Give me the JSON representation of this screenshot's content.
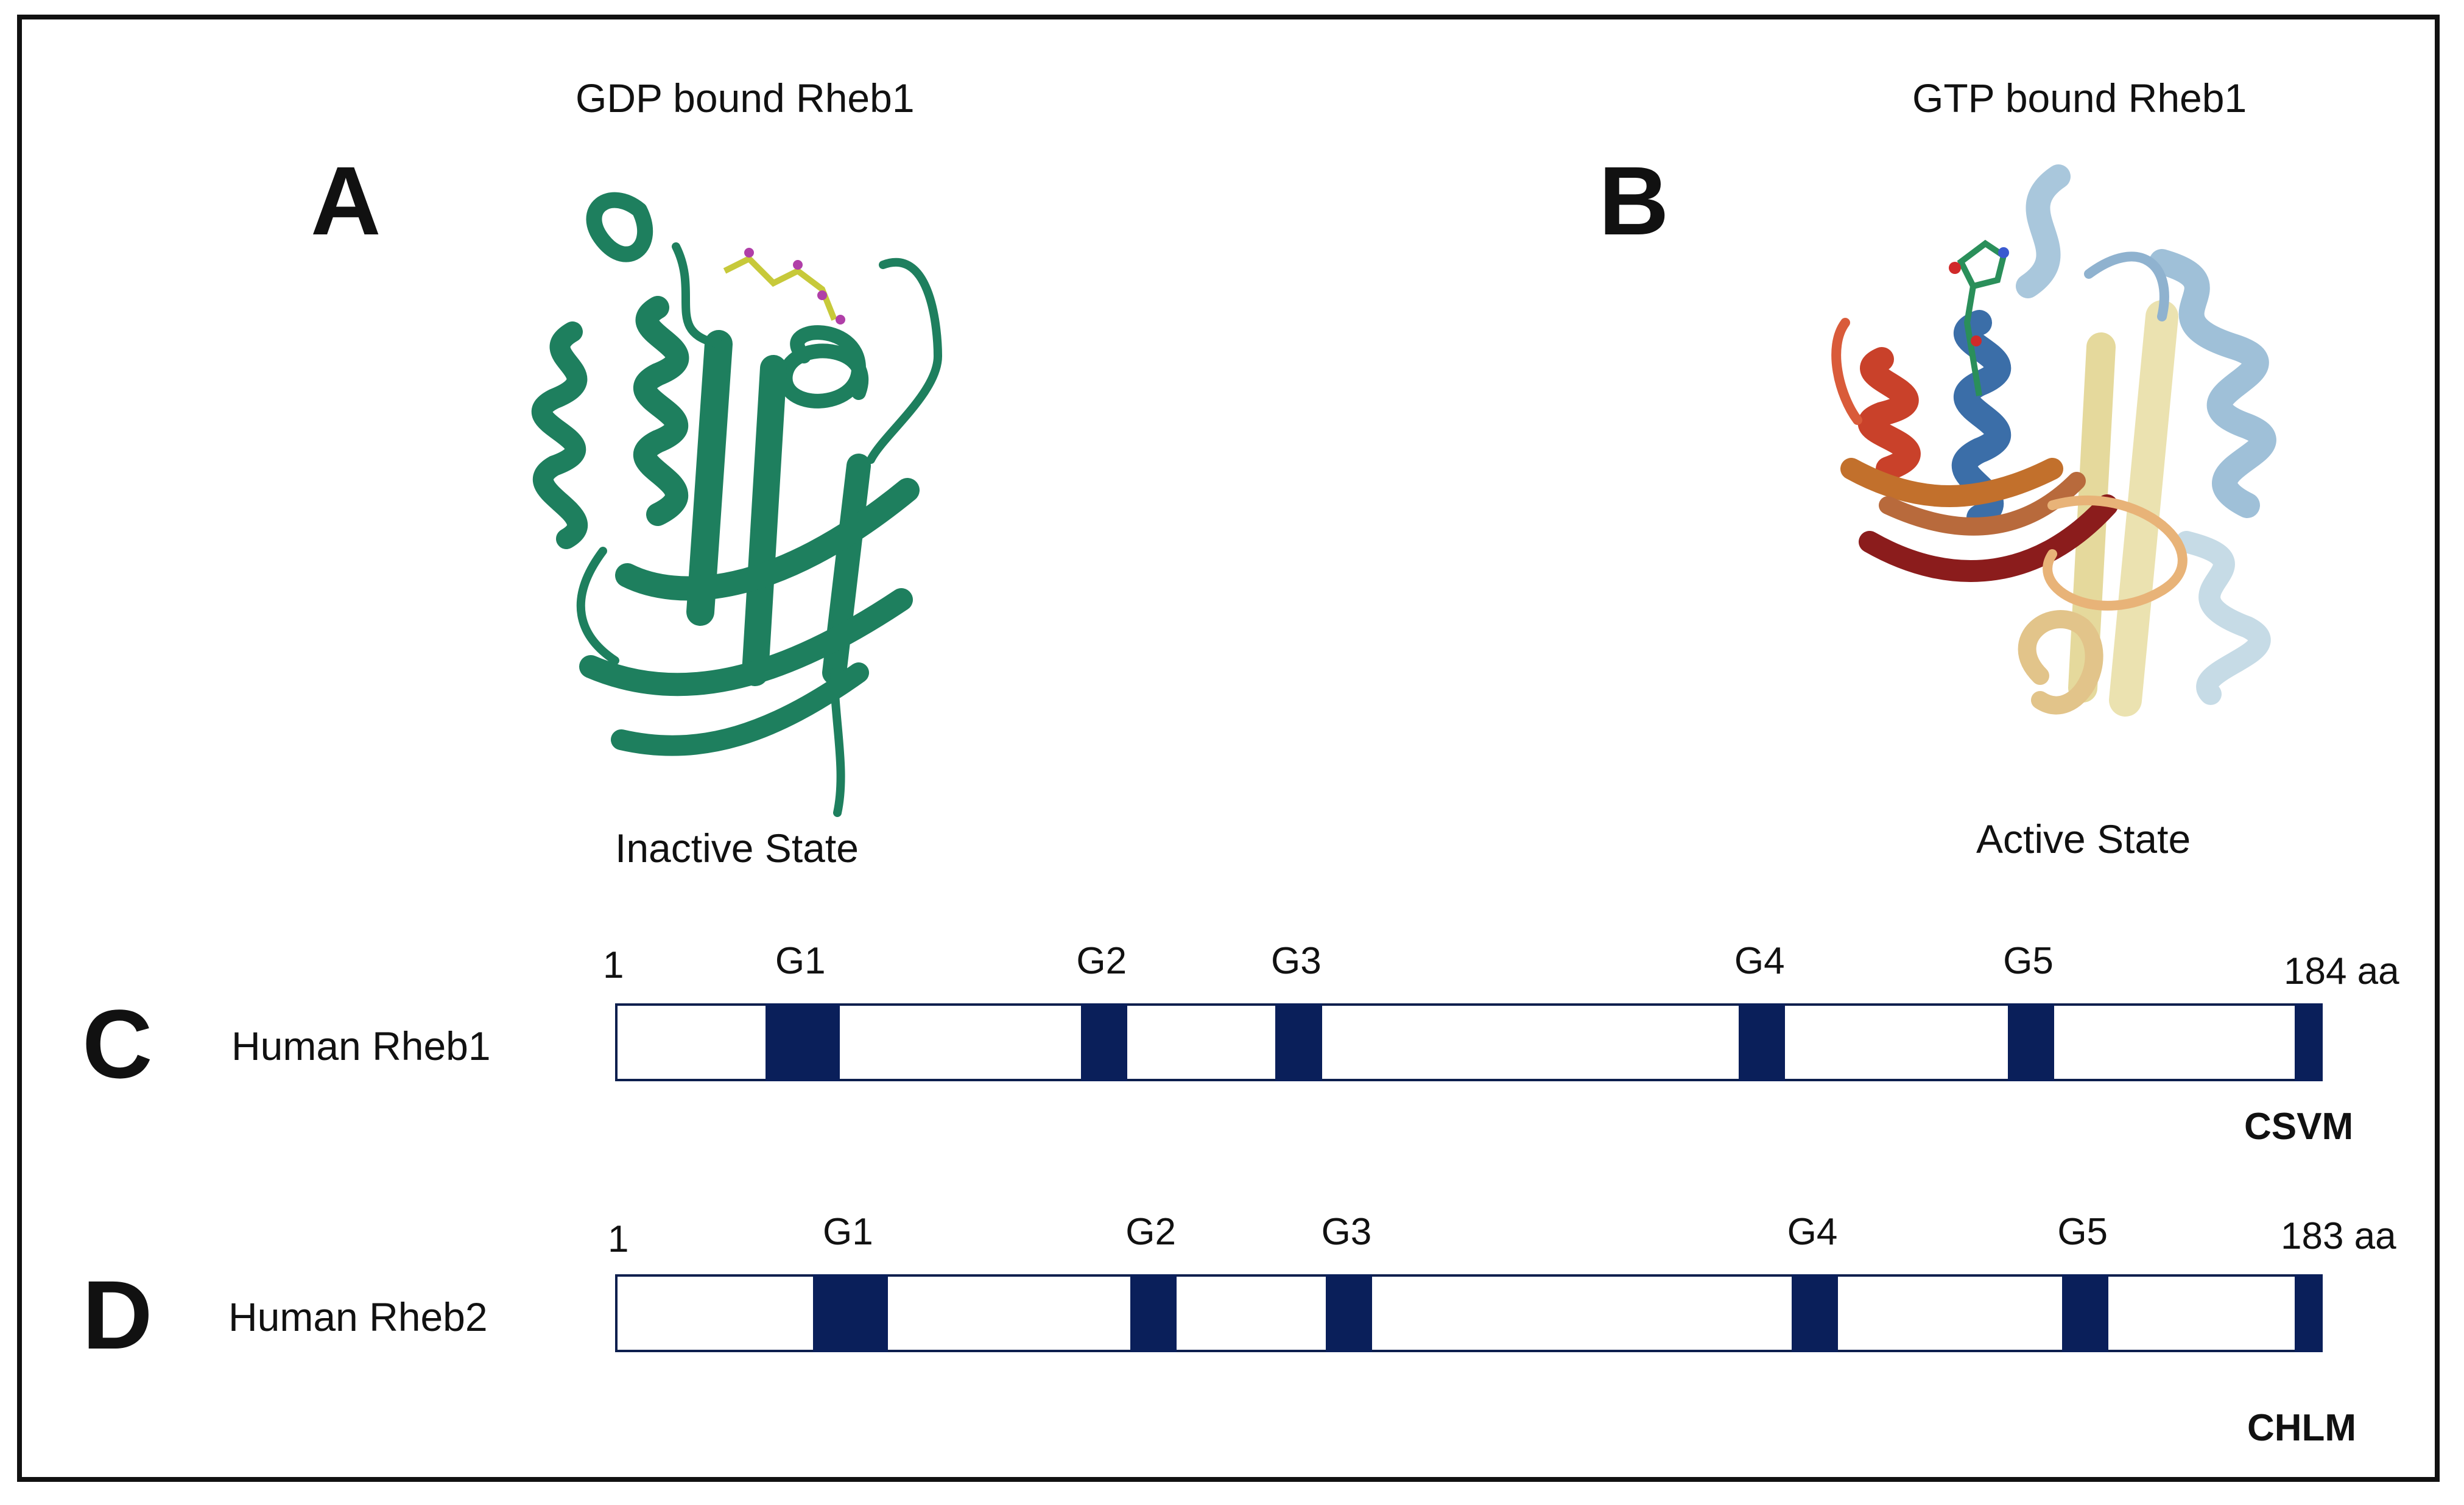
{
  "panels": {
    "a": {
      "letter": "A",
      "title": "GDP bound Rheb1",
      "state": "Inactive State",
      "structure_color": "#1e7f5e"
    },
    "b": {
      "letter": "B",
      "title": "GTP bound Rheb1",
      "state": "Active State",
      "structure_colors": [
        "#a9c7dc",
        "#3b6ea8",
        "#e9dfa6",
        "#c9412a",
        "#e8b378",
        "#8b1c1c"
      ]
    },
    "c": {
      "letter": "C",
      "protein": "Human Rheb1",
      "start": "1",
      "length_label": "184 aa",
      "length": 184,
      "motif": "CSVM",
      "domains": [
        {
          "label": "G1",
          "start": 17,
          "end": 24
        },
        {
          "label": "G2",
          "start": 51,
          "end": 55
        },
        {
          "label": "G3",
          "start": 72,
          "end": 76
        },
        {
          "label": "G4",
          "start": 122,
          "end": 126
        },
        {
          "label": "G5",
          "start": 151,
          "end": 155
        },
        {
          "label": "",
          "start": 182,
          "end": 184
        }
      ]
    },
    "d": {
      "letter": "D",
      "protein": "Human Rheb2",
      "start": "1",
      "length_label": "183 aa",
      "length": 183,
      "motif": "CHLM",
      "domains": [
        {
          "label": "G1",
          "start": 22,
          "end": 29
        },
        {
          "label": "G2",
          "start": 56,
          "end": 60
        },
        {
          "label": "G3",
          "start": 77,
          "end": 81
        },
        {
          "label": "G4",
          "start": 127,
          "end": 131
        },
        {
          "label": "G5",
          "start": 156,
          "end": 160
        },
        {
          "label": "",
          "start": 181,
          "end": 183
        }
      ]
    }
  },
  "colors": {
    "domain_block": "#0a1f5a",
    "bar_border": "#0d1f4e",
    "frame": "#111111"
  }
}
